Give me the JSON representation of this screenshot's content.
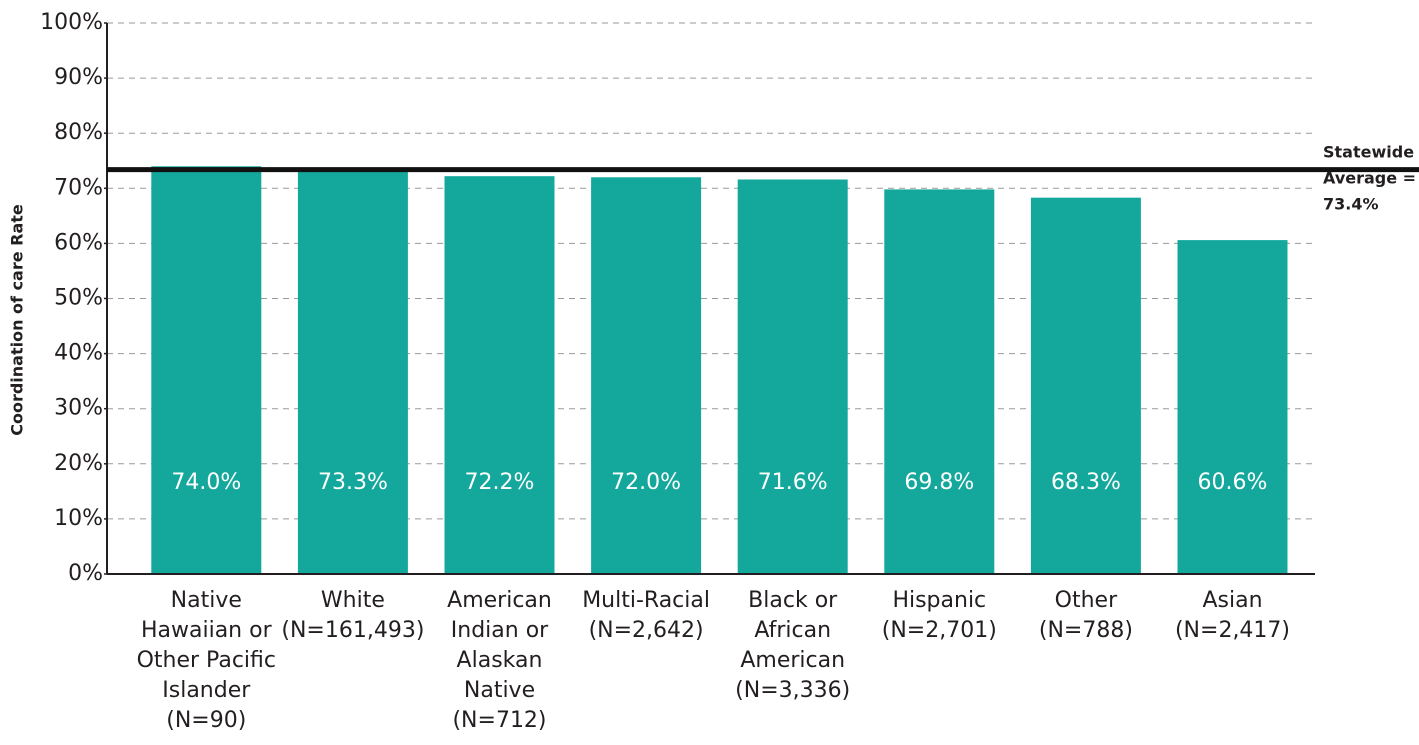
{
  "chart_data": {
    "type": "bar",
    "ylabel": "Coordination of care Rate",
    "categories": [
      [
        "Native",
        "Hawaiian or",
        "Other Pacific",
        "Islander",
        "(N=90)"
      ],
      [
        "White",
        "(N=161,493)"
      ],
      [
        "American",
        "Indian or",
        "Alaskan",
        "Native",
        "(N=712)"
      ],
      [
        "Multi-Racial",
        "(N=2,642)"
      ],
      [
        "Black or",
        "African",
        "American",
        "(N=3,336)"
      ],
      [
        "Hispanic",
        "(N=2,701)"
      ],
      [
        "Other",
        "(N=788)"
      ],
      [
        "Asian",
        "(N=2,417)"
      ]
    ],
    "values": [
      74.0,
      73.3,
      72.2,
      72.0,
      71.6,
      69.8,
      68.3,
      60.6
    ],
    "value_labels": [
      "74.0%",
      "73.3%",
      "72.2%",
      "72.0%",
      "71.6%",
      "69.8%",
      "68.3%",
      "60.6%"
    ],
    "color": "#14a89d",
    "ylim": [
      0,
      100
    ],
    "yticks": [
      {
        "value": 0,
        "label": "0%"
      },
      {
        "value": 10,
        "label": "10%"
      },
      {
        "value": 20,
        "label": "20%"
      },
      {
        "value": 30,
        "label": "30%"
      },
      {
        "value": 40,
        "label": "40%"
      },
      {
        "value": 50,
        "label": "50%"
      },
      {
        "value": 60,
        "label": "60%"
      },
      {
        "value": 70,
        "label": "70%"
      },
      {
        "value": 80,
        "label": "80%"
      },
      {
        "value": 90,
        "label": "90%"
      },
      {
        "value": 100,
        "label": "100%"
      }
    ],
    "grid": true,
    "reference_line": {
      "value": 73.4,
      "label_lines": [
        "Statewide",
        "Average =",
        "73.4%"
      ],
      "color": "#111111"
    }
  }
}
